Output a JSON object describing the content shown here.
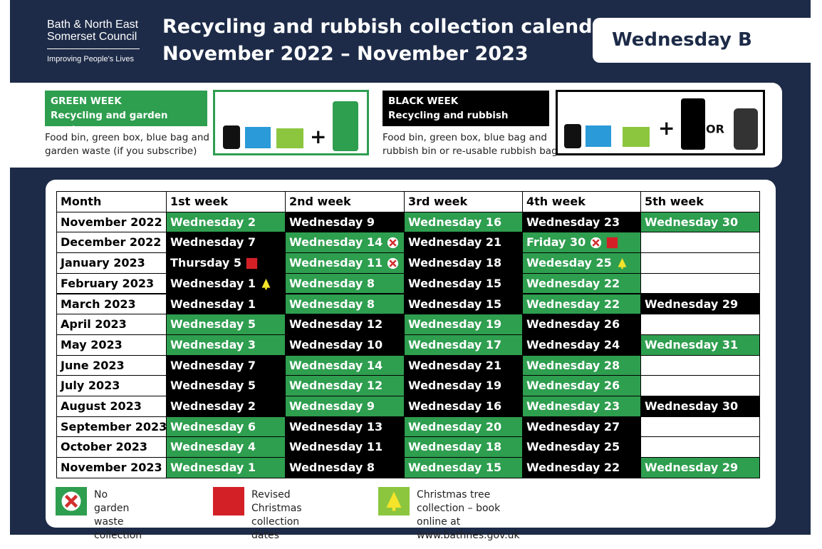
{
  "header": {
    "logo": [
      "Bath & North East",
      "Somerset Council"
    ],
    "tagline": "Improving People's Lives",
    "title": [
      "Recycling and rubbish collection calendar",
      "November 2022 – November 2023"
    ],
    "badge": "Wednesday B"
  },
  "weeks": {
    "green": {
      "label": "GREEN WEEK",
      "subtitle": "Recycling and garden waste",
      "description": [
        "Food bin, green box, blue bag and",
        "garden waste (if you subscribe)"
      ]
    },
    "black": {
      "label": "BLACK WEEK",
      "subtitle": "Recycling and rubbish",
      "description": [
        "Food bin, green box, blue bag and",
        "rubbish bin or re-usable rubbish bag"
      ],
      "or_label": "OR"
    }
  },
  "table": {
    "columns": [
      "Month",
      "1st week",
      "2nd week",
      "3rd week",
      "4th week",
      "5th week"
    ],
    "rows": [
      {
        "month": "November 2022",
        "cells": [
          {
            "text": "Wednesday 2",
            "color": "#2e9e4f"
          },
          {
            "text": "Wednesday 9",
            "color": "#000000"
          },
          {
            "text": "Wednesday 16",
            "color": "#2e9e4f"
          },
          {
            "text": "Wednesday 23",
            "color": "#000000"
          },
          {
            "text": "Wednesday 30",
            "color": "#2e9e4f"
          }
        ]
      },
      {
        "month": "December 2022",
        "cells": [
          {
            "text": "Wednesday 7",
            "color": "#000000"
          },
          {
            "text": "Wednesday 14",
            "color": "#2e9e4f",
            "icons": [
              0
            ]
          },
          {
            "text": "Wednesday 21",
            "color": "#000000"
          },
          {
            "text": "Friday 30",
            "color": "#2e9e4f",
            "icons": [
              0,
              1
            ]
          },
          null
        ]
      },
      {
        "month": "January 2023",
        "cells": [
          {
            "text": "Thursday 5",
            "color": "#000000",
            "icons": [
              1
            ]
          },
          {
            "text": "Wednesday 11",
            "color": "#2e9e4f",
            "icons": [
              0
            ]
          },
          {
            "text": "Wednesday 18",
            "color": "#000000"
          },
          {
            "text": "Wedesday 25",
            "color": "#2e9e4f",
            "icons": [
              2
            ]
          },
          null
        ]
      },
      {
        "month": "February 2023",
        "cells": [
          {
            "text": "Wednesday 1",
            "color": "#000000",
            "icons": [
              2
            ]
          },
          {
            "text": "Wednesday 8",
            "color": "#2e9e4f"
          },
          {
            "text": "Wednesday 15",
            "color": "#000000"
          },
          {
            "text": "Wednesday 22",
            "color": "#2e9e4f"
          },
          null
        ]
      },
      {
        "month": "March 2023",
        "cells": [
          {
            "text": "Wednesday 1",
            "color": "#000000"
          },
          {
            "text": "Wednesday 8",
            "color": "#2e9e4f"
          },
          {
            "text": "Wednesday 15",
            "color": "#000000"
          },
          {
            "text": "Wednesday 22",
            "color": "#2e9e4f"
          },
          {
            "text": "Wednesday 29",
            "color": "#000000"
          }
        ]
      },
      {
        "month": "April 2023",
        "cells": [
          {
            "text": "Wednesday 5",
            "color": "#2e9e4f"
          },
          {
            "text": "Wednesday 12",
            "color": "#000000"
          },
          {
            "text": "Wednesday 19",
            "color": "#2e9e4f"
          },
          {
            "text": "Wednesday 26",
            "color": "#000000"
          },
          null
        ]
      },
      {
        "month": "May 2023",
        "cells": [
          {
            "text": "Wednesday 3",
            "color": "#2e9e4f"
          },
          {
            "text": "Wednesday 10",
            "color": "#000000"
          },
          {
            "text": "Wednesday 17",
            "color": "#2e9e4f"
          },
          {
            "text": "Wednesday 24",
            "color": "#000000"
          },
          {
            "text": "Wednesday 31",
            "color": "#2e9e4f"
          }
        ]
      },
      {
        "month": "June 2023",
        "cells": [
          {
            "text": "Wednesday 7",
            "color": "#000000"
          },
          {
            "text": "Wednesday 14",
            "color": "#2e9e4f"
          },
          {
            "text": "Wednesday 21",
            "color": "#000000"
          },
          {
            "text": "Wednesday 28",
            "color": "#2e9e4f"
          },
          null
        ]
      },
      {
        "month": "July 2023",
        "cells": [
          {
            "text": "Wednesday 5",
            "color": "#000000"
          },
          {
            "text": "Wednesday 12",
            "color": "#2e9e4f"
          },
          {
            "text": "Wednesday 19",
            "color": "#000000"
          },
          {
            "text": "Wednesday 26",
            "color": "#2e9e4f"
          },
          null
        ]
      },
      {
        "month": "August 2023",
        "cells": [
          {
            "text": "Wednesday 2",
            "color": "#000000"
          },
          {
            "text": "Wednesday 9",
            "color": "#2e9e4f"
          },
          {
            "text": "Wednesday 16",
            "color": "#000000"
          },
          {
            "text": "Wednesday 23",
            "color": "#2e9e4f"
          },
          {
            "text": "Wednesday 30",
            "color": "#000000"
          }
        ]
      },
      {
        "month": "September 2023",
        "cells": [
          {
            "text": "Wednesday 6",
            "color": "#2e9e4f"
          },
          {
            "text": "Wednesday 13",
            "color": "#000000"
          },
          {
            "text": "Wednesday 20",
            "color": "#2e9e4f"
          },
          {
            "text": "Wednesday 27",
            "color": "#000000"
          },
          null
        ]
      },
      {
        "month": "October 2023",
        "cells": [
          {
            "text": "Wednesday 4",
            "color": "#2e9e4f"
          },
          {
            "text": "Wednesday 11",
            "color": "#000000"
          },
          {
            "text": "Wednesday 18",
            "color": "#2e9e4f"
          },
          {
            "text": "Wednesday 25",
            "color": "#000000"
          },
          null
        ]
      },
      {
        "month": "November 2023",
        "cells": [
          {
            "text": "Wednesday 1",
            "color": "#2e9e4f"
          },
          {
            "text": "Wednesday 8",
            "color": "#000000"
          },
          {
            "text": "Wednesday 15",
            "color": "#2e9e4f"
          },
          {
            "text": "Wednesday 22",
            "color": "#000000"
          },
          {
            "text": "Wednesday 29",
            "color": "#2e9e4f"
          }
        ]
      }
    ]
  },
  "legend": [
    {
      "text": [
        "No garden",
        "waste collection"
      ]
    },
    {
      "text": [
        "Revised Christmas",
        "collection dates"
      ]
    },
    {
      "text": [
        "Christmas tree collection – book",
        "online at www.bathnes.gov.uk"
      ]
    }
  ]
}
